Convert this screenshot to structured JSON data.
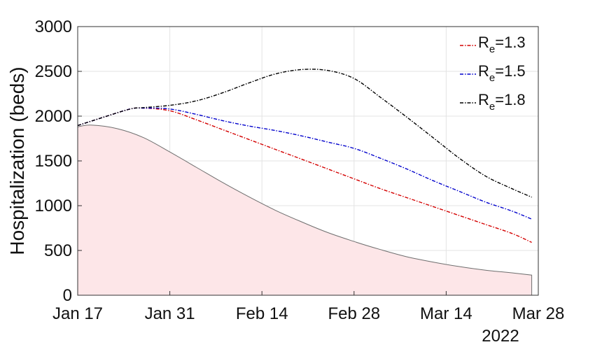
{
  "chart_data": {
    "type": "line",
    "ylabel": "Hospitalization (beds)",
    "ylim": [
      0,
      3000
    ],
    "yticks": [
      "0",
      "500",
      "1000",
      "1500",
      "2000",
      "2500",
      "3000"
    ],
    "xlim": [
      "2022-01-17",
      "2022-03-28"
    ],
    "xtick_labels": [
      "Jan 17",
      "Jan 31",
      "Feb 14",
      "Feb 28",
      "Mar 14",
      "Mar 28"
    ],
    "xtick_dates": [
      "2022-01-17",
      "2022-01-31",
      "2022-02-14",
      "2022-02-28",
      "2022-03-14",
      "2022-03-28"
    ],
    "year_label": "2022",
    "grid": true,
    "legend_position": "top-right",
    "x": [
      "2022-01-17",
      "2022-01-21",
      "2022-01-25",
      "2022-01-27",
      "2022-01-31",
      "2022-02-04",
      "2022-02-08",
      "2022-02-12",
      "2022-02-16",
      "2022-02-20",
      "2022-02-24",
      "2022-02-28",
      "2022-03-04",
      "2022-03-08",
      "2022-03-12",
      "2022-03-16",
      "2022-03-20",
      "2022-03-24",
      "2022-03-27"
    ],
    "series": [
      {
        "name": "R_e=1.3",
        "label_main": "R",
        "label_sub": "e",
        "label_rest": "=1.3",
        "color": "#d40000",
        "dash": "dashdot",
        "values": [
          1895,
          1990,
          2080,
          2090,
          2060,
          1960,
          1850,
          1740,
          1630,
          1520,
          1410,
          1300,
          1190,
          1090,
          990,
          890,
          790,
          690,
          590
        ]
      },
      {
        "name": "R_e=1.5",
        "label_main": "R",
        "label_sub": "e",
        "label_rest": "=1.5",
        "color": "#0000cc",
        "dash": "dashdot",
        "values": [
          1895,
          1990,
          2080,
          2090,
          2080,
          2020,
          1950,
          1890,
          1840,
          1780,
          1710,
          1640,
          1530,
          1410,
          1280,
          1160,
          1040,
          940,
          850
        ]
      },
      {
        "name": "R_e=1.8",
        "label_main": "R",
        "label_sub": "e",
        "label_rest": "=1.8",
        "color": "#000000",
        "dash": "dashdot",
        "values": [
          1895,
          1990,
          2080,
          2095,
          2120,
          2170,
          2260,
          2370,
          2470,
          2520,
          2510,
          2420,
          2210,
          1990,
          1760,
          1530,
          1330,
          1190,
          1095
        ]
      }
    ],
    "area": {
      "color": "#fde6e8",
      "edge": "#6e6e6e",
      "x": [
        "2022-01-17",
        "2022-01-19",
        "2022-01-23",
        "2022-01-27",
        "2022-01-31",
        "2022-02-04",
        "2022-02-08",
        "2022-02-12",
        "2022-02-16",
        "2022-02-20",
        "2022-02-24",
        "2022-02-28",
        "2022-03-04",
        "2022-03-08",
        "2022-03-12",
        "2022-03-16",
        "2022-03-20",
        "2022-03-24",
        "2022-03-27"
      ],
      "values": [
        1880,
        1900,
        1860,
        1760,
        1600,
        1430,
        1260,
        1100,
        950,
        820,
        700,
        600,
        510,
        430,
        370,
        320,
        280,
        250,
        225
      ]
    }
  }
}
